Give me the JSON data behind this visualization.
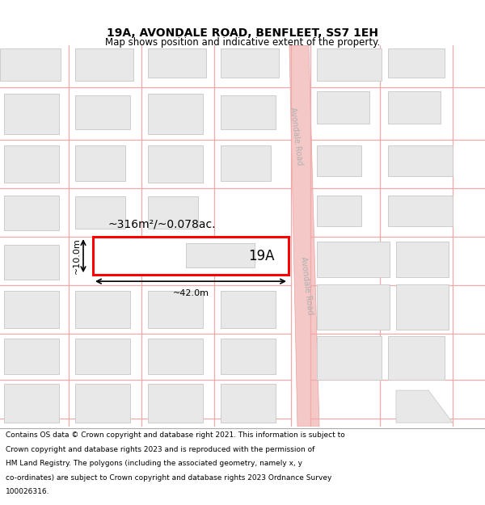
{
  "title": "19A, AVONDALE ROAD, BENFLEET, SS7 1EH",
  "subtitle": "Map shows position and indicative extent of the property.",
  "footer_lines": [
    "Contains OS data © Crown copyright and database right 2021. This information is subject to Crown copyright and database rights 2023 and is reproduced with the permission of",
    "HM Land Registry. The polygons (including the associated geometry, namely x, y co-ordinates) are subject to Crown copyright and database rights 2023 Ordnance Survey",
    "100026316."
  ],
  "bg_color": "#ffffff",
  "map_bg": "#ffffff",
  "road_fill": "#f5c8c8",
  "road_edge": "#e8a0a0",
  "building_fill": "#e8e8e8",
  "building_edge": "#cccccc",
  "plot_fill": "#ffffff",
  "plot_edge": "#ff0000",
  "line_color": "#f0a8a8",
  "road_label": "Avondale Road",
  "area_label": "~316m²/~0.078ac.",
  "plot_label": "19A",
  "dim_width": "~42.0m",
  "dim_height": "~10.0m",
  "title_fontsize": 10,
  "subtitle_fontsize": 8.5,
  "footer_fontsize": 6.5,
  "road_label_color": "#b0b0b0",
  "annotation_color": "#000000"
}
